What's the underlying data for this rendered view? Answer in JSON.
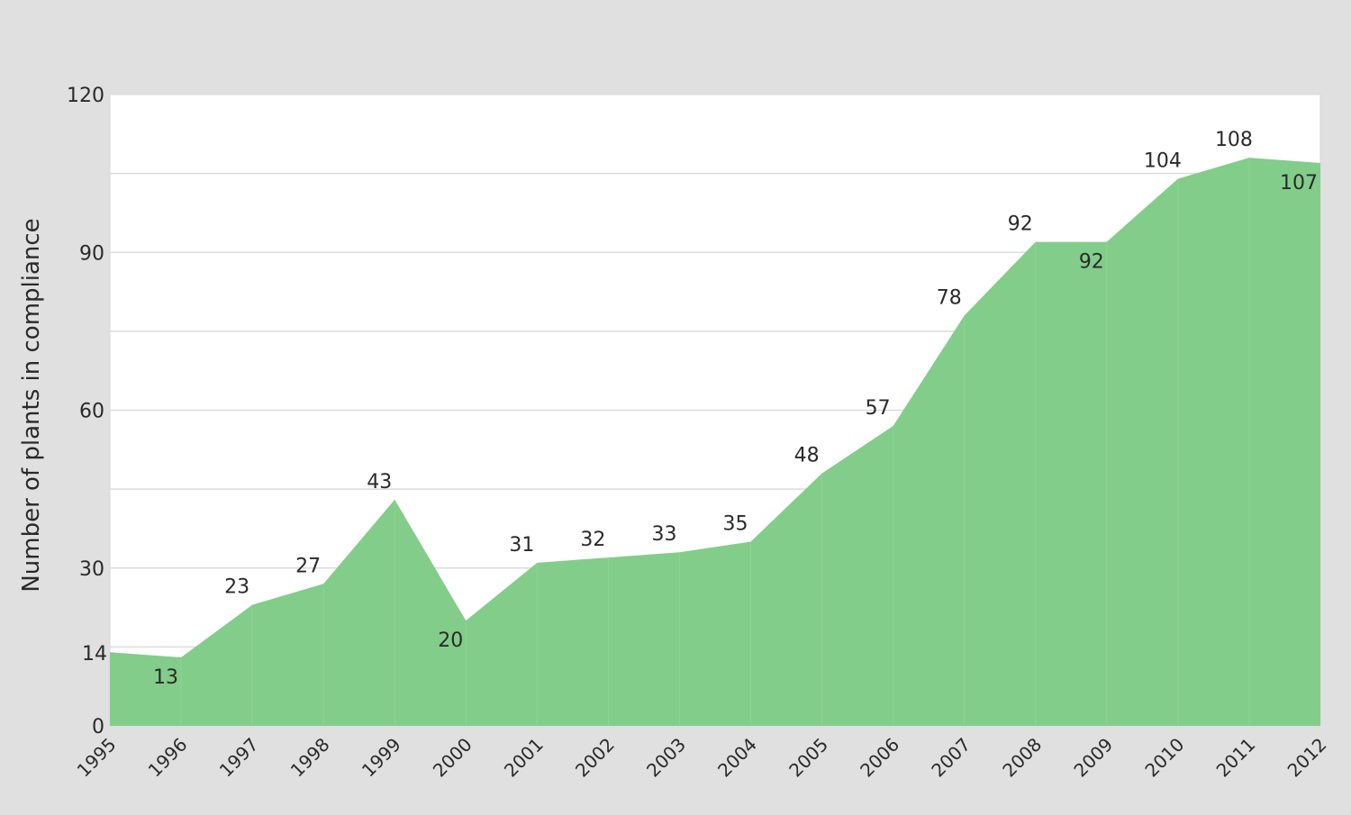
{
  "chart_data": {
    "type": "area",
    "title": "",
    "xlabel": "",
    "ylabel": "Number of plants in compliance",
    "x": [
      "1995",
      "1996",
      "1997",
      "1998",
      "1999",
      "2000",
      "2001",
      "2002",
      "2003",
      "2004",
      "2005",
      "2006",
      "2007",
      "2008",
      "2009",
      "2010",
      "2011",
      "2012"
    ],
    "series": [
      {
        "values": [
          14,
          13,
          23,
          27,
          43,
          20,
          31,
          32,
          33,
          35,
          48,
          57,
          78,
          92,
          92,
          104,
          108,
          107
        ],
        "label_positions": [
          "left",
          "below",
          "above",
          "above",
          "above",
          "below",
          "above",
          "above",
          "above",
          "above",
          "above",
          "above",
          "above",
          "above",
          "below",
          "above",
          "above",
          "below"
        ]
      }
    ],
    "ylim": [
      0,
      120
    ],
    "yticks": [
      0,
      30,
      60,
      90,
      120
    ],
    "grid_step": 15,
    "grid": true,
    "legend": "none",
    "colors": {
      "fill": "#82cd8a",
      "plot_bg": "#ffffff",
      "page_bg": "#e0e0e0",
      "grid": "#dcdcdc"
    }
  }
}
